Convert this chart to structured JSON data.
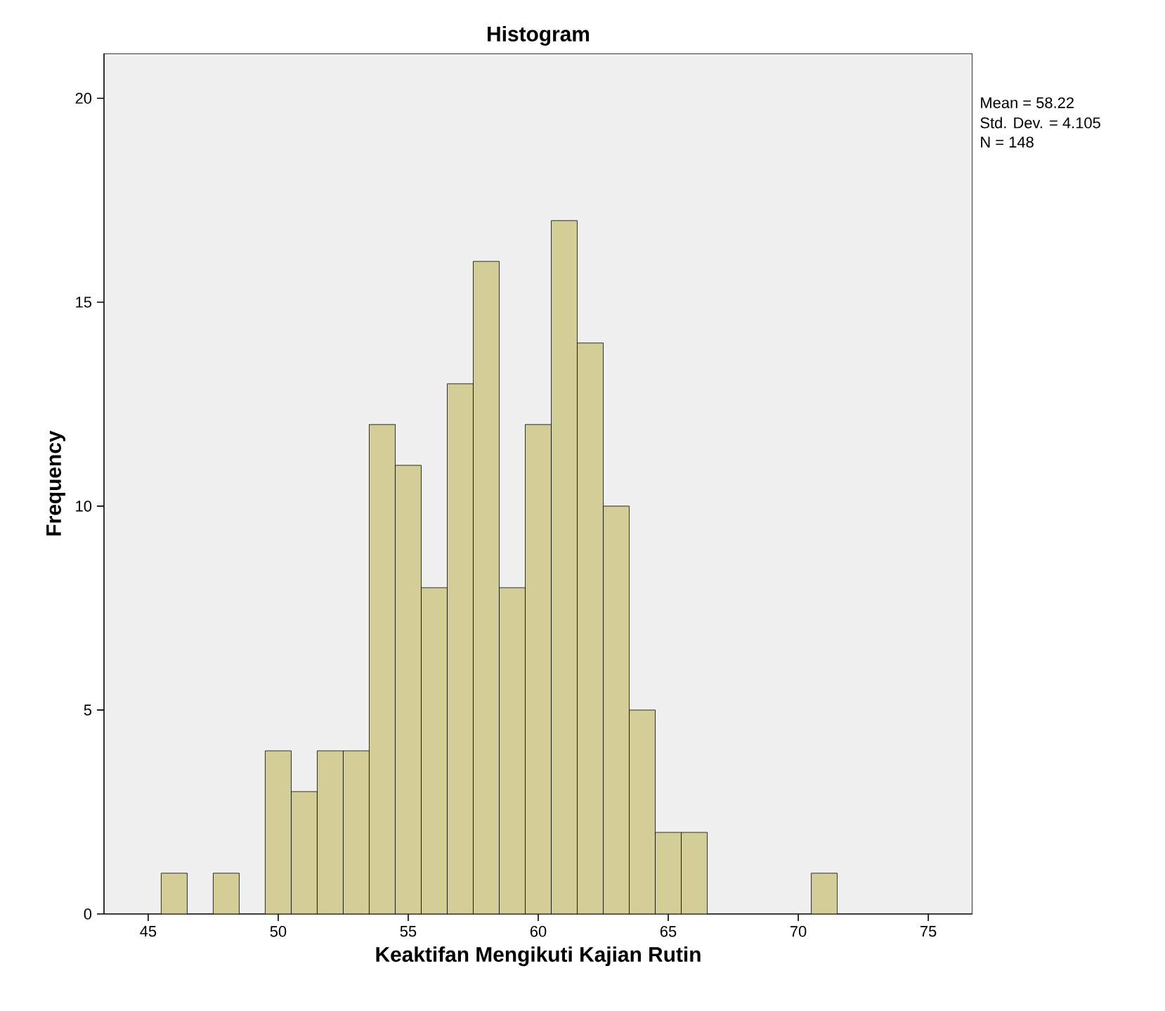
{
  "chart_data": {
    "type": "histogram",
    "title": "Histogram",
    "xlabel": "Keaktifan Mengikuti Kajian Rutin",
    "ylabel": "Frequency",
    "annotations": [
      "Mean = 58.22",
      "Std. Dev. = 4.105",
      "N = 148"
    ],
    "bins": [
      45.5,
      46.5,
      47.5,
      48.5,
      49.5,
      50.5,
      51.5,
      52.5,
      53.5,
      54.5,
      55.5,
      56.5,
      57.5,
      58.5,
      59.5,
      60.5,
      61.5,
      62.5,
      63.5,
      64.5,
      65.5,
      66.5,
      67.5,
      68.5,
      69.5,
      70.5,
      71.5
    ],
    "values": [
      1,
      0,
      1,
      0,
      4,
      3,
      4,
      4,
      12,
      11,
      8,
      13,
      16,
      8,
      12,
      17,
      14,
      10,
      5,
      2,
      2,
      0,
      0,
      0,
      0,
      1
    ],
    "color": "#d3ce97",
    "xlim": [
      43.3,
      76.7
    ],
    "ylim": [
      0,
      21.1
    ],
    "xticks": [
      45,
      50,
      55,
      60,
      65,
      70,
      75
    ],
    "yticks": [
      0,
      5,
      10,
      15,
      20
    ],
    "grid": false
  }
}
